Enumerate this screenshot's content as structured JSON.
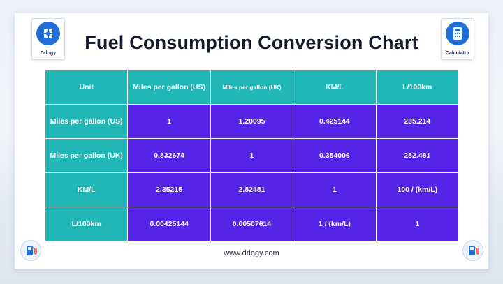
{
  "brand": {
    "left_logo_text": "Drlogy",
    "right_logo_text": "Calculator"
  },
  "title": "Fuel Consumption Conversion Chart",
  "table": {
    "headers": [
      "Unit",
      "Miles per gallon (US)",
      "Miles per gallon (UK)",
      "KM/L",
      "L/100km"
    ],
    "rows": [
      {
        "label": "Miles per gallon (US)",
        "cells": [
          "1",
          "1.20095",
          "0.425144",
          "235.214"
        ]
      },
      {
        "label": "Miles per gallon (UK)",
        "cells": [
          "0.832674",
          "1",
          "0.354006",
          "282.481"
        ]
      },
      {
        "label": "KM/L",
        "cells": [
          "2.35215",
          "2.82481",
          "1",
          "100 / (km/L)"
        ]
      },
      {
        "label": "L/100km",
        "cells": [
          "0.00425144",
          "0.00507614",
          "1 / (km/L)",
          "1"
        ]
      }
    ]
  },
  "footer": {
    "url": "www.drlogy.com"
  },
  "colors": {
    "header_teal": "#20b6b6",
    "value_purple": "#5524e6",
    "brand_blue": "#1f6fd6"
  },
  "icons": {
    "left_logo": "drlogy-logo-icon",
    "right_logo": "calculator-icon",
    "bottom_badges": "fuel-pump-icon"
  }
}
